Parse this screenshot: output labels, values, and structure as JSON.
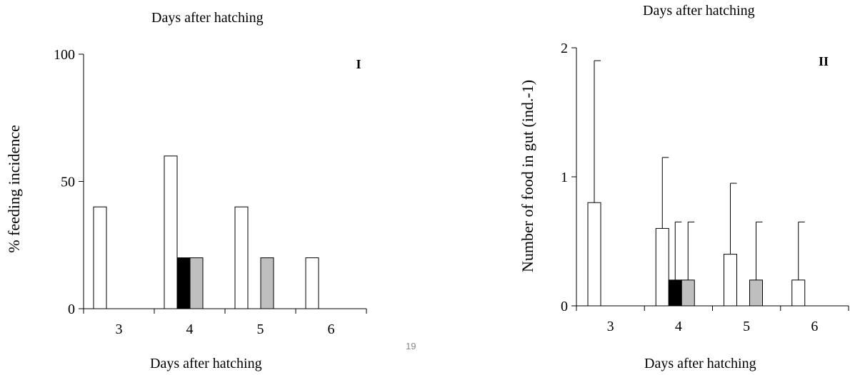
{
  "page_number": "19",
  "chart_data": [
    {
      "type": "bar",
      "panel_label": "I",
      "top_title": "Days after hatching",
      "title": "",
      "xlabel": "Days after hatching",
      "ylabel": "% feeding incidence",
      "ylim": [
        0,
        100
      ],
      "yticks": [
        "0",
        "50",
        "100"
      ],
      "categories": [
        "3",
        "4",
        "5",
        "6"
      ],
      "series": [
        {
          "color": "#ffffff",
          "values": [
            40,
            60,
            40,
            20
          ]
        },
        {
          "color": "#000000",
          "values": [
            0,
            20,
            0,
            0
          ]
        },
        {
          "color": "#bfbfbf",
          "values": [
            0,
            20,
            20,
            0
          ]
        }
      ]
    },
    {
      "type": "bar",
      "panel_label": "II",
      "top_title": "Days after hatching",
      "title": "",
      "xlabel": "Days after hatching",
      "ylabel": "Number of food in gut (ind.-1)",
      "ylim": [
        0,
        2
      ],
      "yticks": [
        "0",
        "1",
        "2"
      ],
      "categories": [
        "3",
        "4",
        "5",
        "6"
      ],
      "series": [
        {
          "color": "#ffffff",
          "values": [
            0.8,
            0.6,
            0.4,
            0.2
          ],
          "error": [
            1.1,
            0.55,
            0.55,
            0.45
          ]
        },
        {
          "color": "#000000",
          "values": [
            0,
            0.2,
            0,
            0
          ],
          "error": [
            0,
            0.45,
            0,
            0
          ]
        },
        {
          "color": "#bfbfbf",
          "values": [
            0,
            0.2,
            0.2,
            0
          ],
          "error": [
            0,
            0.45,
            0.45,
            0
          ]
        }
      ]
    }
  ]
}
